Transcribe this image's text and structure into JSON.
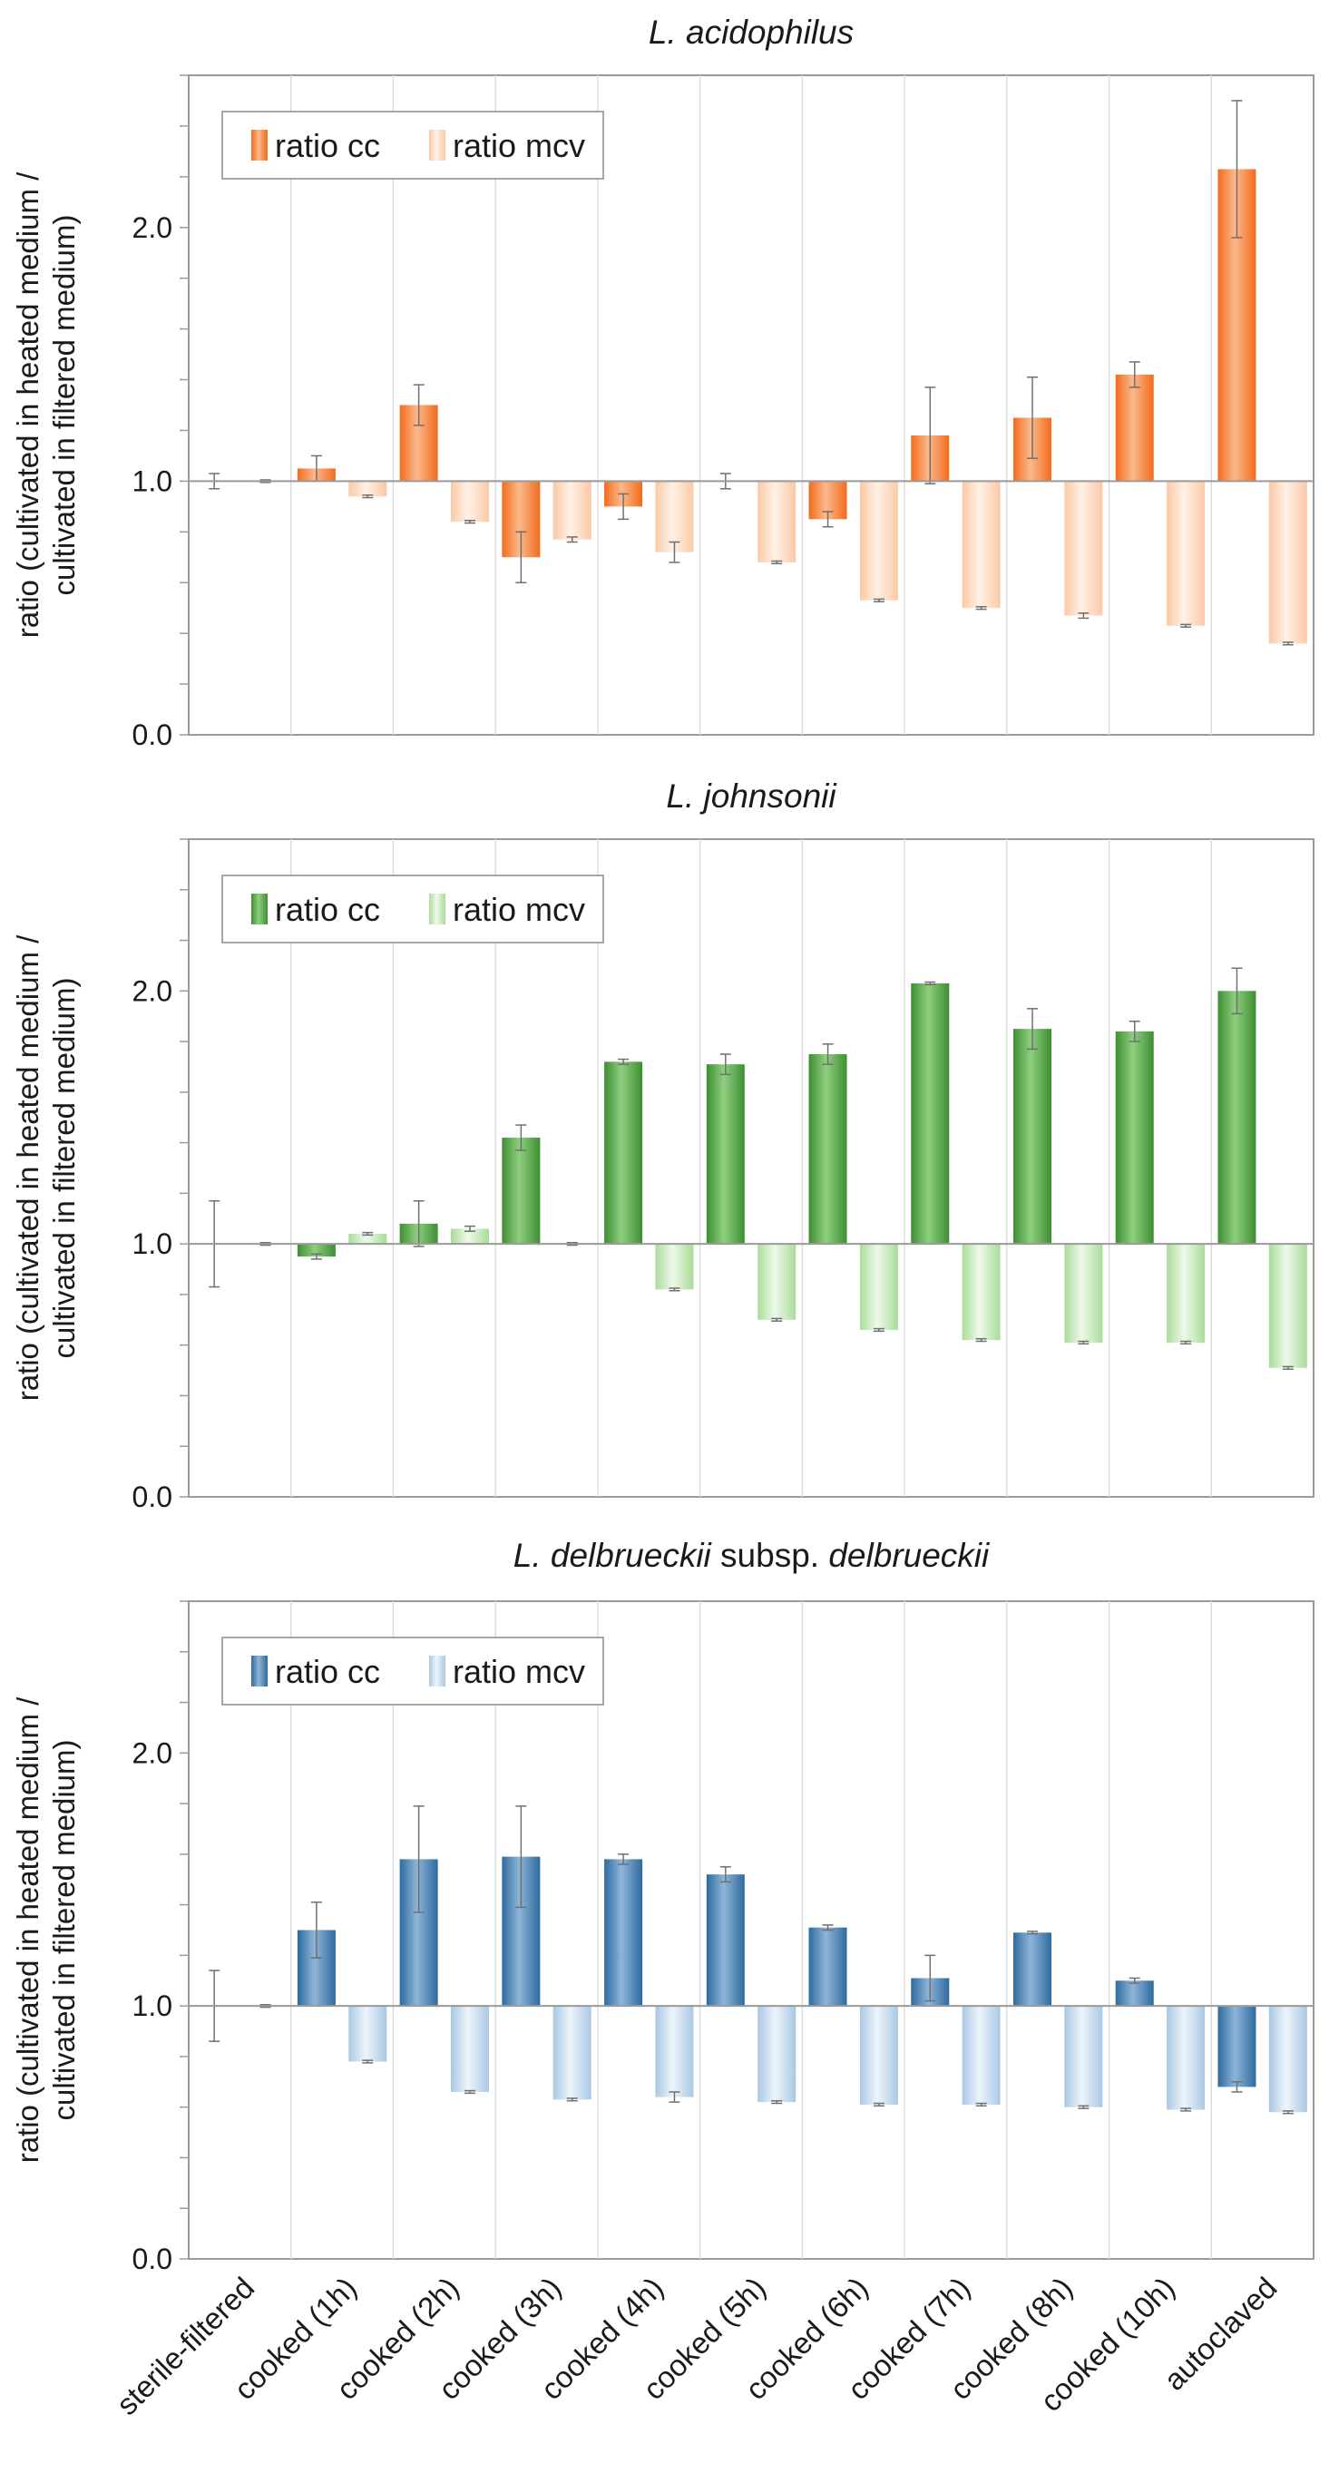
{
  "colors": {
    "grid": "#dcdcdc",
    "axis": "#9a9a9a",
    "errorbar": "#707070",
    "baseline": "#9a9a9a"
  },
  "chart_data": [
    {
      "type": "bar",
      "title_parts": [
        {
          "text": "L. acidophilus",
          "italic": true
        }
      ],
      "ylabel": [
        "ratio (cultivated in heated medium /",
        "cultivated in filtered medium)"
      ],
      "ylim": [
        0,
        2.6
      ],
      "yticks": [
        0.0,
        1.0,
        2.0
      ],
      "ytick_labels": [
        "0.0",
        "1.0",
        "2.0"
      ],
      "baseline": 1.0,
      "grid": "vertical",
      "legend_position": "top-left",
      "categories": [
        "sterile-filtered",
        "cooked (1h)",
        "cooked (2h)",
        "cooked (3h)",
        "cooked (4h)",
        "cooked (5h)",
        "cooked (6h)",
        "cooked (7h)",
        "cooked (8h)",
        "cooked (10h)",
        "autoclaved"
      ],
      "series": [
        {
          "name": "ratio cc",
          "color": "#f26b1d",
          "color_light": "#fbb98b",
          "values": [
            1.0,
            1.05,
            1.3,
            0.7,
            0.9,
            1.0,
            0.85,
            1.18,
            1.25,
            1.42,
            2.23
          ],
          "errors": [
            0.03,
            0.05,
            0.08,
            0.1,
            0.05,
            0.03,
            0.03,
            0.19,
            0.16,
            0.05,
            0.27
          ]
        },
        {
          "name": "ratio mcv",
          "color": "#fbc9a5",
          "color_light": "#fff1e6",
          "values": [
            1.0,
            0.94,
            0.84,
            0.77,
            0.72,
            0.68,
            0.53,
            0.5,
            0.47,
            0.43,
            0.36
          ],
          "errors": [
            0.005,
            0.005,
            0.005,
            0.01,
            0.04,
            0.005,
            0.005,
            0.005,
            0.01,
            0.005,
            0.005
          ]
        }
      ]
    },
    {
      "type": "bar",
      "title_parts": [
        {
          "text": "L. johnsonii",
          "italic": true
        }
      ],
      "ylabel": [
        "ratio (cultivated in heated medium /",
        "cultivated in filtered medium)"
      ],
      "ylim": [
        0,
        2.6
      ],
      "yticks": [
        0.0,
        1.0,
        2.0
      ],
      "ytick_labels": [
        "0.0",
        "1.0",
        "2.0"
      ],
      "baseline": 1.0,
      "grid": "vertical",
      "legend_position": "top-left",
      "categories": [
        "sterile-filtered",
        "cooked (1h)",
        "cooked (2h)",
        "cooked (3h)",
        "cooked (4h)",
        "cooked (5h)",
        "cooked (6h)",
        "cooked (7h)",
        "cooked (8h)",
        "cooked (10h)",
        "autoclaved"
      ],
      "series": [
        {
          "name": "ratio cc",
          "color": "#3e8e32",
          "color_light": "#8fce80",
          "values": [
            1.0,
            0.95,
            1.08,
            1.42,
            1.72,
            1.71,
            1.75,
            2.03,
            1.85,
            1.84,
            2.0
          ],
          "errors": [
            0.17,
            0.01,
            0.09,
            0.05,
            0.01,
            0.04,
            0.04,
            0.005,
            0.08,
            0.04,
            0.09
          ]
        },
        {
          "name": "ratio mcv",
          "color": "#a9dc99",
          "color_light": "#eef9ea",
          "values": [
            1.0,
            1.04,
            1.06,
            1.0,
            0.82,
            0.7,
            0.66,
            0.62,
            0.61,
            0.61,
            0.51
          ],
          "errors": [
            0.005,
            0.005,
            0.01,
            0.005,
            0.005,
            0.005,
            0.005,
            0.005,
            0.005,
            0.005,
            0.005
          ]
        }
      ]
    },
    {
      "type": "bar",
      "title_parts": [
        {
          "text": "L. delbrueckii",
          "italic": true
        },
        {
          "text": " subsp. ",
          "italic": false
        },
        {
          "text": "delbrueckii",
          "italic": true
        }
      ],
      "ylabel": [
        "ratio (cultivated in heated medium /",
        "cultivated in filtered medium)"
      ],
      "ylim": [
        0,
        2.6
      ],
      "yticks": [
        0.0,
        1.0,
        2.0
      ],
      "ytick_labels": [
        "0.0",
        "1.0",
        "2.0"
      ],
      "baseline": 1.0,
      "grid": "vertical",
      "legend_position": "top-left",
      "categories": [
        "sterile-filtered",
        "cooked (1h)",
        "cooked (2h)",
        "cooked (3h)",
        "cooked (4h)",
        "cooked (5h)",
        "cooked (6h)",
        "cooked (7h)",
        "cooked (8h)",
        "cooked (10h)",
        "autoclaved"
      ],
      "series": [
        {
          "name": "ratio cc",
          "color": "#2e6a9e",
          "color_light": "#8fb5d8",
          "values": [
            1.0,
            1.3,
            1.58,
            1.59,
            1.58,
            1.52,
            1.31,
            1.11,
            1.29,
            1.1,
            0.68
          ],
          "errors": [
            0.14,
            0.11,
            0.21,
            0.2,
            0.02,
            0.03,
            0.01,
            0.09,
            0.005,
            0.01,
            0.02
          ]
        },
        {
          "name": "ratio mcv",
          "color": "#a9c8e4",
          "color_light": "#edf4fb",
          "values": [
            1.0,
            0.78,
            0.66,
            0.63,
            0.64,
            0.62,
            0.61,
            0.61,
            0.6,
            0.59,
            0.58
          ],
          "errors": [
            0.005,
            0.005,
            0.005,
            0.005,
            0.02,
            0.005,
            0.005,
            0.005,
            0.005,
            0.005,
            0.005
          ]
        }
      ]
    }
  ]
}
